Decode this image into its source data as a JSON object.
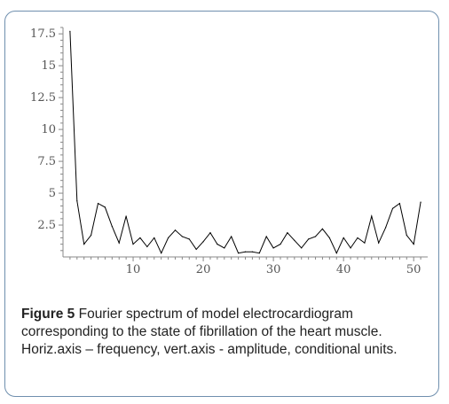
{
  "figure": {
    "label": "Figure 5",
    "caption": " Fourier spectrum of model electrocardiogram corresponding to the state of fibrillation of the heart muscle. Horiz.axis – frequency, vert.axis - amplitude, conditional units."
  },
  "chart_data": {
    "type": "line",
    "title": "",
    "xlabel": "",
    "ylabel": "",
    "xlim": [
      0,
      52
    ],
    "ylim": [
      0,
      18
    ],
    "x_ticks": [
      10,
      20,
      30,
      40,
      50
    ],
    "y_ticks": [
      2.5,
      5,
      7.5,
      10,
      12.5,
      15,
      17.5
    ],
    "y_tick_labels": [
      "2.5",
      "5",
      "7.5",
      "10",
      "12.5",
      "15",
      "17.5"
    ],
    "grid": false,
    "series": [
      {
        "color": "#000000",
        "x": [
          1,
          2,
          3,
          4,
          5,
          6,
          7,
          8,
          9,
          10,
          11,
          12,
          13,
          14,
          15,
          16,
          17,
          18,
          19,
          20,
          21,
          22,
          23,
          24,
          25,
          26,
          27,
          28,
          29,
          30,
          31,
          32,
          33,
          34,
          35,
          36,
          37,
          38,
          39,
          40,
          41,
          42,
          43,
          44,
          45,
          46,
          47,
          48,
          49,
          50,
          51
        ],
        "values": [
          17.7,
          4.4,
          1.0,
          1.7,
          4.2,
          3.9,
          2.4,
          1.1,
          3.2,
          1.0,
          1.5,
          0.8,
          1.5,
          0.3,
          1.5,
          2.1,
          1.6,
          1.4,
          0.6,
          1.2,
          1.9,
          1.0,
          0.7,
          1.6,
          0.3,
          0.4,
          0.4,
          0.3,
          1.6,
          0.7,
          1.0,
          1.9,
          1.3,
          0.7,
          1.4,
          1.6,
          2.2,
          1.5,
          0.3,
          1.5,
          0.7,
          1.5,
          1.1,
          3.2,
          1.1,
          2.3,
          3.8,
          4.2,
          1.7,
          1.0,
          4.3
        ]
      }
    ]
  }
}
